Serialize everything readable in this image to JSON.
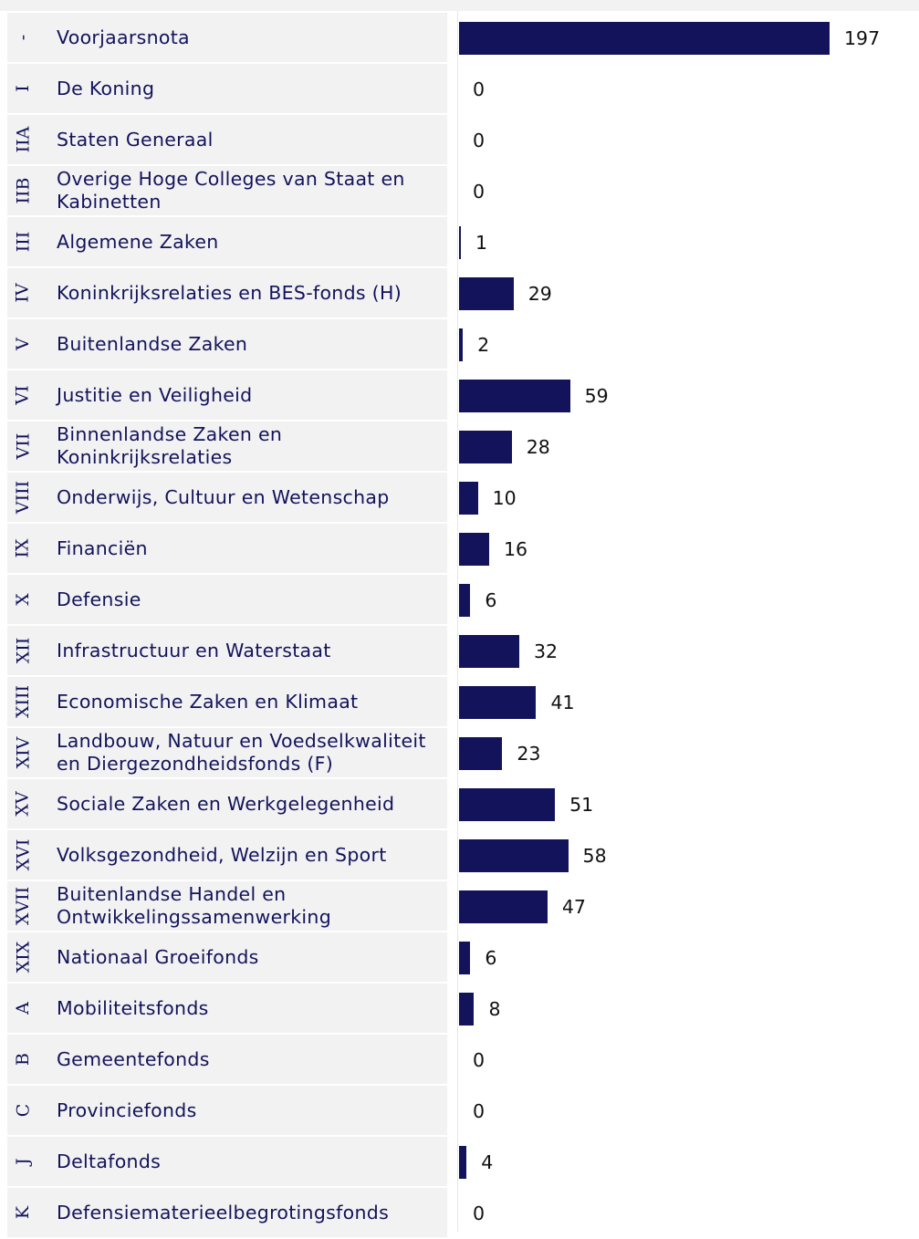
{
  "chart_data": {
    "type": "bar",
    "orientation": "horizontal",
    "color": "#13135c",
    "codes": [
      "-",
      "I",
      "IIA",
      "IIB",
      "III",
      "IV",
      "V",
      "VI",
      "VII",
      "VIII",
      "IX",
      "X",
      "XII",
      "XIII",
      "XIV",
      "XV",
      "XVI",
      "XVII",
      "XIX",
      "A",
      "B",
      "C",
      "J",
      "K"
    ],
    "categories": [
      "Voorjaarsnota",
      "De Koning",
      "Staten Generaal",
      "Overige Hoge Colleges van Staat en Kabinetten",
      "Algemene Zaken",
      "Koninkrijksrelaties en BES-fonds (H)",
      "Buitenlandse Zaken",
      "Justitie en Veiligheid",
      "Binnenlandse Zaken en Koninkrijksrelaties",
      "Onderwijs, Cultuur en Wetenschap",
      "Financiën",
      "Defensie",
      "Infrastructuur en Waterstaat",
      "Economische Zaken en Klimaat",
      "Landbouw, Natuur en Voedselkwaliteit en Diergezondheidsfonds (F)",
      "Sociale Zaken en Werkgelegenheid",
      "Volksgezondheid, Welzijn en Sport",
      "Buitenlandse Handel en Ontwikkelingssamenwerking",
      "Nationaal Groeifonds",
      "Mobiliteitsfonds",
      "Gemeentefonds",
      "Provinciefonds",
      "Deltafonds",
      "Defensiematerieelbegrotingsfonds"
    ],
    "values": [
      197,
      0,
      0,
      0,
      1,
      29,
      2,
      59,
      28,
      10,
      16,
      6,
      32,
      41,
      23,
      51,
      58,
      47,
      6,
      8,
      0,
      0,
      4,
      0
    ]
  }
}
